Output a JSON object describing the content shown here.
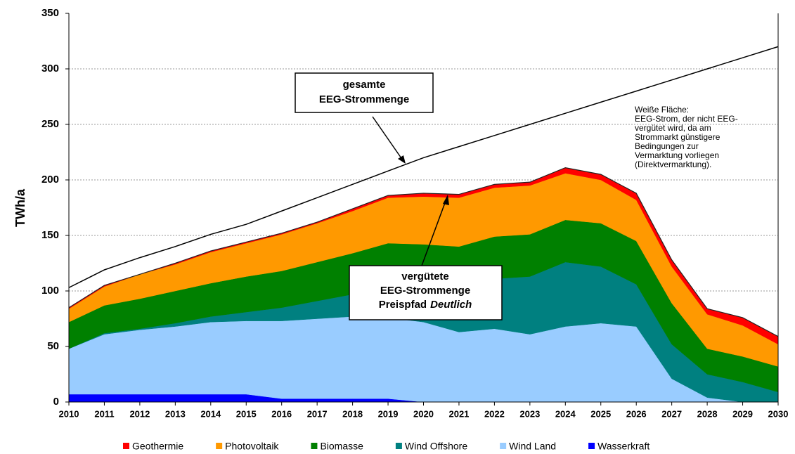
{
  "chart_data": {
    "type": "stacked_area",
    "y_label": "TWh/a",
    "x": [
      2010,
      2011,
      2012,
      2013,
      2014,
      2015,
      2016,
      2017,
      2018,
      2019,
      2020,
      2021,
      2022,
      2023,
      2024,
      2025,
      2026,
      2027,
      2028,
      2029,
      2030
    ],
    "xlim": [
      2010,
      2030
    ],
    "ylim": [
      0,
      350
    ],
    "yticks": [
      0,
      50,
      100,
      150,
      200,
      250,
      300,
      350
    ],
    "grid": true,
    "legend": "bottom",
    "series": [
      {
        "name": "Geothermie",
        "color": "#ff0000",
        "values": [
          1,
          1,
          0,
          1,
          1,
          1,
          1,
          1,
          2,
          2,
          3,
          3,
          3,
          3,
          5,
          5,
          6,
          6,
          5,
          7,
          7
        ]
      },
      {
        "name": "Photovoltaik",
        "color": "#ff9900",
        "values": [
          12,
          17,
          22,
          24,
          28,
          30,
          33,
          35,
          38,
          41,
          43,
          44,
          44,
          44,
          42,
          39,
          37,
          33,
          31,
          28,
          20
        ]
      },
      {
        "name": "Biomasse",
        "color": "#008000",
        "values": [
          24,
          25,
          27,
          29,
          30,
          32,
          33,
          35,
          37,
          43,
          37,
          32,
          38,
          38,
          38,
          39,
          39,
          37,
          23,
          23,
          23
        ]
      },
      {
        "name": "Wind Offshore",
        "color": "#008080",
        "values": [
          0,
          1,
          1,
          3,
          5,
          8,
          12,
          16,
          20,
          24,
          33,
          45,
          45,
          52,
          58,
          51,
          38,
          31,
          21,
          18,
          9
        ]
      },
      {
        "name": "Wind Land",
        "color": "#99ccff",
        "values": [
          41,
          54,
          58,
          61,
          65,
          66,
          70,
          72,
          74,
          73,
          72,
          63,
          66,
          61,
          68,
          71,
          68,
          21,
          4,
          0,
          0
        ]
      },
      {
        "name": "Wasserkraft",
        "color": "#0000ff",
        "values": [
          7,
          7,
          7,
          7,
          7,
          7,
          3,
          3,
          3,
          3,
          0,
          0,
          0,
          0,
          0,
          0,
          0,
          0,
          0,
          0,
          0
        ]
      }
    ],
    "total": {
      "color": "#000000",
      "values": [
        103,
        119,
        130,
        140,
        151,
        160,
        172,
        184,
        196,
        208,
        220,
        230,
        240,
        250,
        260,
        270,
        280,
        290,
        300,
        310,
        320
      ]
    },
    "annotations": [
      {
        "lines": [
          "gesamte",
          "EEG-Strommenge"
        ]
      },
      {
        "lines": [
          "vergütete",
          "EEG-Strommenge"
        ],
        "last_line": "Preispfad",
        "last_line_italic": "Deutlich"
      }
    ],
    "note": [
      "Weiße Fläche:",
      "EEG-Strom, der nicht EEG-",
      "vergütet wird, da am",
      "Strommarkt günstigere",
      "Bedingungen zur",
      "Vermarktung vorliegen",
      "(Direktvermarktung)."
    ]
  }
}
